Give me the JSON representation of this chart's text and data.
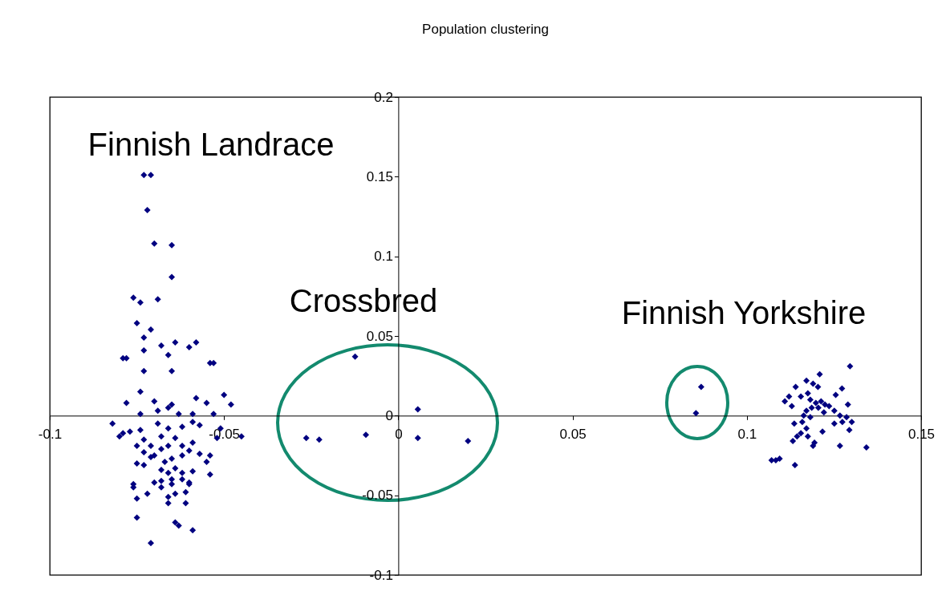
{
  "chart_data": {
    "type": "scatter",
    "title": "Population clustering",
    "x": [
      -0.073,
      -0.071,
      -0.072,
      -0.07,
      -0.065,
      -0.065,
      -0.076,
      -0.074,
      -0.069,
      -0.075,
      -0.071,
      -0.073,
      -0.073,
      -0.068,
      -0.064,
      -0.06,
      -0.058,
      -0.079,
      -0.078,
      -0.066,
      -0.054,
      -0.073,
      -0.065,
      -0.074,
      -0.078,
      -0.07,
      -0.058,
      -0.055,
      -0.074,
      -0.069,
      -0.066,
      -0.065,
      -0.063,
      -0.059,
      -0.053,
      -0.082,
      -0.079,
      -0.077,
      -0.074,
      -0.069,
      -0.068,
      -0.066,
      -0.062,
      -0.059,
      -0.057,
      -0.045,
      -0.08,
      -0.073,
      -0.071,
      -0.068,
      -0.066,
      -0.064,
      -0.062,
      -0.059,
      -0.075,
      -0.073,
      -0.071,
      -0.07,
      -0.067,
      -0.065,
      -0.062,
      -0.06,
      -0.057,
      -0.052,
      -0.055,
      -0.075,
      -0.073,
      -0.068,
      -0.066,
      -0.064,
      -0.062,
      -0.059,
      -0.054,
      -0.076,
      -0.076,
      -0.07,
      -0.068,
      -0.065,
      -0.062,
      -0.06,
      -0.065,
      -0.072,
      -0.066,
      -0.064,
      -0.061,
      -0.06,
      -0.068,
      -0.075,
      -0.066,
      -0.061,
      -0.075,
      -0.064,
      -0.063,
      -0.059,
      -0.071,
      -0.054,
      -0.051,
      -0.048,
      -0.05,
      -0.053,
      -0.0124,
      0.0056,
      -0.0264,
      -0.0227,
      -0.0093,
      0.0056,
      0.02,
      0.0869,
      0.0854,
      0.1296,
      0.1209,
      0.1171,
      0.119,
      0.1204,
      0.114,
      0.1273,
      0.1121,
      0.1109,
      0.1129,
      0.1255,
      0.129,
      0.1155,
      0.1175,
      0.1182,
      0.1198,
      0.1213,
      0.1224,
      0.1236,
      0.1251,
      0.1171,
      0.1186,
      0.1205,
      0.1163,
      0.1182,
      0.1221,
      0.1267,
      0.1286,
      0.1301,
      0.1251,
      0.1274,
      0.1294,
      0.1136,
      0.1159,
      0.1171,
      0.1144,
      0.1155,
      0.1132,
      0.1175,
      0.1217,
      0.1194,
      0.119,
      0.1267,
      0.1343,
      0.1071,
      0.1083,
      0.1094,
      0.1138
    ],
    "series": [
      {
        "color": "#000080",
        "values": [
          0.151,
          0.151,
          0.129,
          0.108,
          0.107,
          0.087,
          0.074,
          0.071,
          0.073,
          0.058,
          0.054,
          0.049,
          0.041,
          0.044,
          0.046,
          0.043,
          0.046,
          0.036,
          0.036,
          0.038,
          0.033,
          0.028,
          0.028,
          0.015,
          0.008,
          0.009,
          0.011,
          0.008,
          0.001,
          0.003,
          0.005,
          0.007,
          0.001,
          0.001,
          0.001,
          -0.005,
          -0.011,
          -0.01,
          -0.009,
          -0.005,
          -0.013,
          -0.008,
          -0.007,
          -0.004,
          -0.006,
          -0.013,
          -0.013,
          -0.015,
          -0.019,
          -0.021,
          -0.019,
          -0.014,
          -0.019,
          -0.017,
          -0.019,
          -0.023,
          -0.026,
          -0.025,
          -0.029,
          -0.027,
          -0.025,
          -0.022,
          -0.024,
          -0.014,
          -0.029,
          -0.03,
          -0.031,
          -0.034,
          -0.036,
          -0.033,
          -0.036,
          -0.035,
          -0.037,
          -0.043,
          -0.045,
          -0.042,
          -0.041,
          -0.04,
          -0.04,
          -0.043,
          -0.043,
          -0.049,
          -0.051,
          -0.049,
          -0.048,
          -0.042,
          -0.045,
          -0.052,
          -0.055,
          -0.055,
          -0.064,
          -0.067,
          -0.069,
          -0.072,
          -0.08,
          -0.025,
          -0.008,
          0.007,
          0.013,
          0.033,
          0.037,
          0.004,
          -0.014,
          -0.015,
          -0.012,
          -0.014,
          -0.016,
          0.018,
          0.0015,
          0.031,
          0.026,
          0.022,
          0.02,
          0.018,
          0.018,
          0.017,
          0.012,
          0.009,
          0.006,
          0.013,
          0.007,
          0.012,
          0.014,
          0.01,
          0.008,
          0.009,
          0.007,
          0.006,
          0.003,
          0.003,
          0.005,
          0.005,
          0.0,
          -0.001,
          0.002,
          0.0,
          -0.001,
          -0.004,
          -0.005,
          -0.004,
          -0.009,
          -0.005,
          -0.004,
          -0.008,
          -0.013,
          -0.011,
          -0.016,
          -0.013,
          -0.01,
          -0.017,
          -0.019,
          -0.019,
          -0.02,
          -0.028,
          -0.028,
          -0.027,
          -0.031
        ]
      }
    ],
    "annotations": [
      "Finnish Landrace",
      "Crossbred",
      "Finnish Yorkshire"
    ],
    "xlim": [
      -0.1,
      0.15
    ],
    "xticks": [
      -0.1,
      -0.05,
      0,
      0.05,
      0.1,
      0.15
    ],
    "ylim": [
      -0.1,
      0.2
    ],
    "yticks": [
      -0.1,
      -0.05,
      0,
      0.05,
      0.1,
      0.15,
      0.2
    ],
    "marker": "diamond",
    "grid": false
  }
}
